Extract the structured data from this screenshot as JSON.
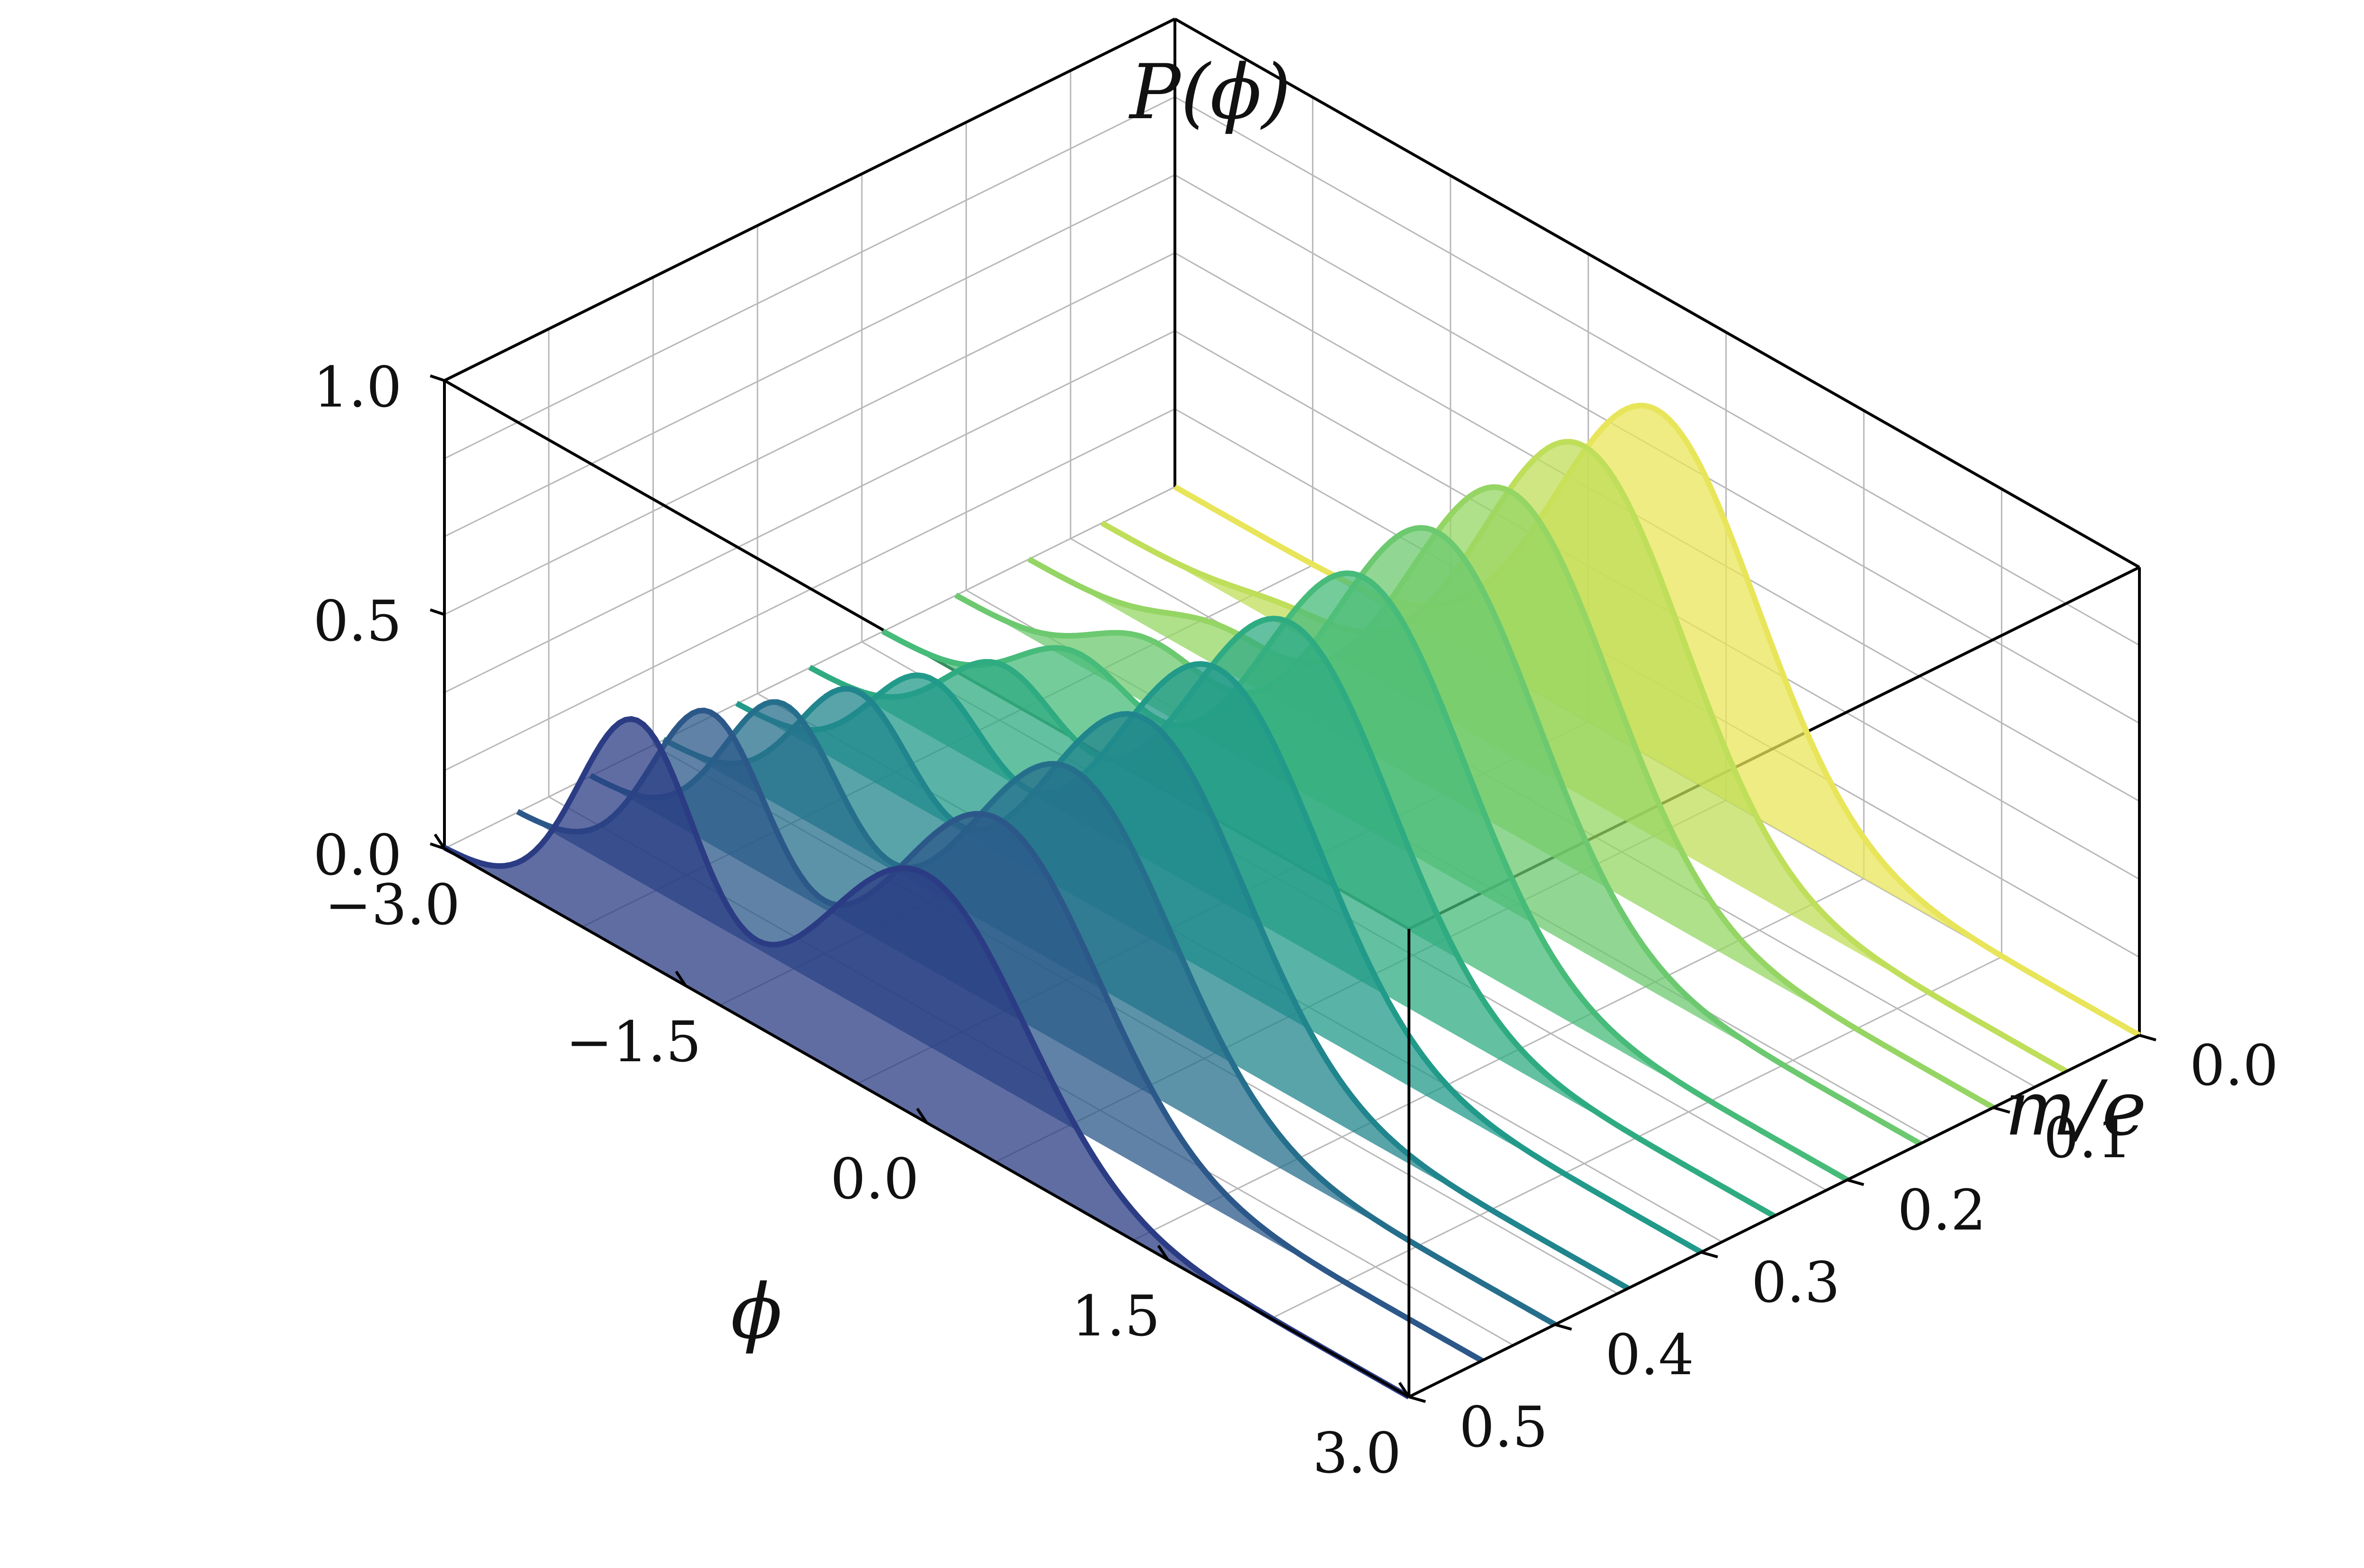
{
  "chart_data": {
    "type": "area",
    "title": "",
    "xlabel": "ϕ",
    "ylabel": "m/e",
    "zlabel": "P(ϕ)",
    "x_range": [
      -3.0,
      3.0
    ],
    "y_range": [
      0.0,
      0.5
    ],
    "z_range": [
      0.0,
      1.0
    ],
    "x_ticks": [
      "−3.0",
      "−1.5",
      "0.0",
      "1.5",
      "3.0"
    ],
    "y_ticks": [
      "0.0",
      "0.1",
      "0.2",
      "0.3",
      "0.4",
      "0.5"
    ],
    "z_ticks": [
      "0.0",
      "0.5",
      "1.0"
    ],
    "grid": true,
    "colormap": [
      "#440154",
      "#2a788e",
      "#22a884",
      "#7ad151",
      "#fde725"
    ],
    "series": [
      {
        "m_over_e": 0.0,
        "color": "#e8e55a",
        "peak": 0.75,
        "shoulder": 0.0
      },
      {
        "m_over_e": 0.05,
        "color": "#bfde5a",
        "peak": 0.75,
        "shoulder": 0.04
      },
      {
        "m_over_e": 0.1,
        "color": "#94d563",
        "peak": 0.73,
        "shoulder": 0.08
      },
      {
        "m_over_e": 0.15,
        "color": "#6cc96f",
        "peak": 0.72,
        "shoulder": 0.13
      },
      {
        "m_over_e": 0.2,
        "color": "#47bb79",
        "peak": 0.7,
        "shoulder": 0.18
      },
      {
        "m_over_e": 0.25,
        "color": "#2fab82",
        "peak": 0.68,
        "shoulder": 0.23
      },
      {
        "m_over_e": 0.3,
        "color": "#219a8a",
        "peak": 0.66,
        "shoulder": 0.28
      },
      {
        "m_over_e": 0.35,
        "color": "#20858c",
        "peak": 0.63,
        "shoulder": 0.33
      },
      {
        "m_over_e": 0.4,
        "color": "#256f8c",
        "peak": 0.6,
        "shoulder": 0.38
      },
      {
        "m_over_e": 0.45,
        "color": "#2c5889",
        "peak": 0.57,
        "shoulder": 0.44
      },
      {
        "m_over_e": 0.5,
        "color": "#2b3c84",
        "peak": 0.53,
        "shoulder": 0.5
      }
    ]
  }
}
